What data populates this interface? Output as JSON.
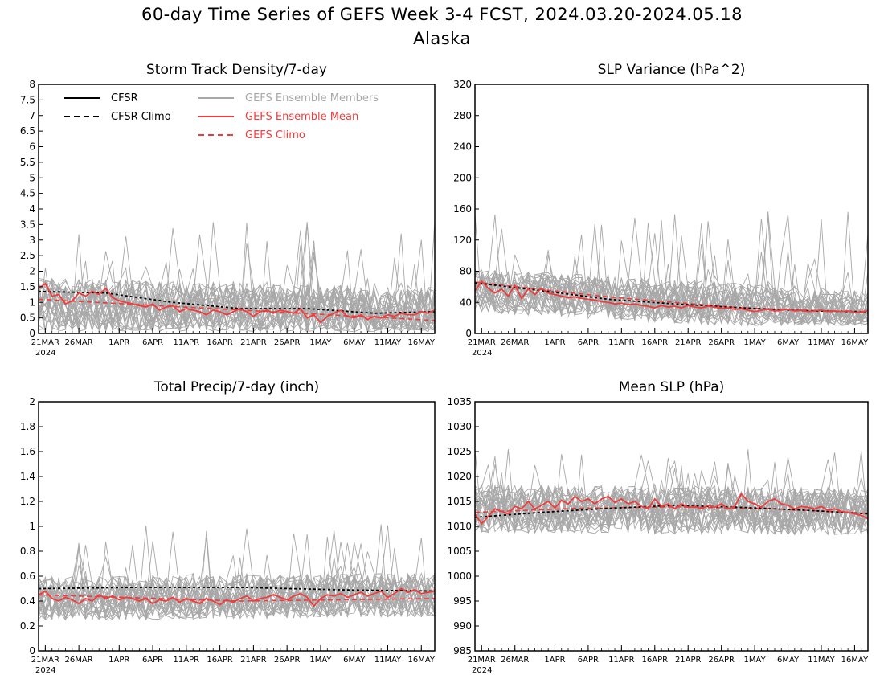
{
  "figure": {
    "title": "60-day Time Series of GEFS Week 3-4 FCST, 2024.03.20-2024.05.18",
    "subtitle": "Alaska"
  },
  "colors": {
    "cfsr": "#000000",
    "ensemble_members": "#a8a8a8",
    "ensemble_mean": "#f03c3c",
    "gefs_climo": "#f03c3c"
  },
  "x_axis": {
    "tick_labels": [
      "21MAR",
      "26MAR",
      "1APR",
      "6APR",
      "11APR",
      "16APR",
      "21APR",
      "26APR",
      "1MAY",
      "6MAY",
      "11MAY",
      "16MAY"
    ],
    "tick_days": [
      1,
      6,
      12,
      17,
      22,
      27,
      32,
      37,
      42,
      47,
      52,
      57
    ],
    "year_label": "2024",
    "range_days": [
      0,
      59
    ]
  },
  "legend": {
    "cfsr": "CFSR",
    "cfsr_climo": "CFSR Climo",
    "members": "GEFS Ensemble Members",
    "mean": "GEFS Ensemble Mean",
    "gefs_climo": "GEFS Climo"
  },
  "chart_data": [
    {
      "type": "line",
      "id": "storm",
      "title": "Storm Track Density/7-day",
      "ylim": [
        0,
        8
      ],
      "yticks": [
        "0",
        "0.5",
        "1",
        "1.5",
        "2",
        "2.5",
        "3",
        "3.5",
        "4",
        "4.5",
        "5",
        "5.5",
        "6",
        "6.5",
        "7",
        "7.5",
        "8"
      ],
      "ytick_values": [
        0,
        0.5,
        1,
        1.5,
        2,
        2.5,
        3,
        3.5,
        4,
        4.5,
        5,
        5.5,
        6,
        6.5,
        7,
        7.5,
        8
      ],
      "cfsr_climo": [
        [
          0,
          1.35
        ],
        [
          10,
          1.3
        ],
        [
          20,
          1.0
        ],
        [
          30,
          0.8
        ],
        [
          40,
          0.8
        ],
        [
          50,
          0.65
        ],
        [
          59,
          0.7
        ]
      ],
      "gefs_climo": [
        [
          0,
          1.1
        ],
        [
          59,
          0.42
        ]
      ],
      "ensemble_mean": [
        [
          0,
          1.45
        ],
        [
          1,
          1.6
        ],
        [
          2,
          1.2
        ],
        [
          3,
          1.25
        ],
        [
          4,
          0.95
        ],
        [
          5,
          1.05
        ],
        [
          6,
          1.3
        ],
        [
          7,
          1.2
        ],
        [
          8,
          1.35
        ],
        [
          9,
          1.25
        ],
        [
          10,
          1.45
        ],
        [
          11,
          1.15
        ],
        [
          12,
          1.05
        ],
        [
          13,
          1.0
        ],
        [
          14,
          0.95
        ],
        [
          15,
          0.9
        ],
        [
          16,
          0.85
        ],
        [
          17,
          0.95
        ],
        [
          18,
          0.75
        ],
        [
          19,
          0.85
        ],
        [
          20,
          0.9
        ],
        [
          21,
          0.7
        ],
        [
          22,
          0.8
        ],
        [
          23,
          0.75
        ],
        [
          24,
          0.7
        ],
        [
          25,
          0.6
        ],
        [
          26,
          0.75
        ],
        [
          27,
          0.7
        ],
        [
          28,
          0.6
        ],
        [
          29,
          0.7
        ],
        [
          30,
          0.8
        ],
        [
          31,
          0.7
        ],
        [
          32,
          0.55
        ],
        [
          33,
          0.7
        ],
        [
          34,
          0.75
        ],
        [
          35,
          0.65
        ],
        [
          36,
          0.75
        ],
        [
          37,
          0.7
        ],
        [
          38,
          0.65
        ],
        [
          39,
          0.8
        ],
        [
          40,
          0.5
        ],
        [
          41,
          0.6
        ],
        [
          42,
          0.35
        ],
        [
          43,
          0.55
        ],
        [
          44,
          0.65
        ],
        [
          45,
          0.75
        ],
        [
          46,
          0.55
        ],
        [
          47,
          0.5
        ],
        [
          48,
          0.6
        ],
        [
          49,
          0.45
        ],
        [
          50,
          0.55
        ],
        [
          51,
          0.5
        ],
        [
          52,
          0.6
        ],
        [
          53,
          0.55
        ],
        [
          54,
          0.65
        ],
        [
          55,
          0.6
        ],
        [
          56,
          0.6
        ],
        [
          57,
          0.7
        ],
        [
          58,
          0.65
        ],
        [
          59,
          0.75
        ]
      ],
      "members": {
        "center": 0.9,
        "center_end": 0.6,
        "spread": 1.1,
        "max": 3.7,
        "min": 0.05,
        "count": 30
      }
    },
    {
      "type": "line",
      "id": "slpvar",
      "title": "SLP Variance (hPa^2)",
      "ylim": [
        0,
        320
      ],
      "yticks": [
        "0",
        "40",
        "80",
        "120",
        "160",
        "200",
        "240",
        "280",
        "320"
      ],
      "ytick_values": [
        0,
        40,
        80,
        120,
        160,
        200,
        240,
        280,
        320
      ],
      "cfsr_climo": [
        [
          0,
          65
        ],
        [
          10,
          55
        ],
        [
          20,
          44
        ],
        [
          30,
          38
        ],
        [
          40,
          33
        ],
        [
          50,
          29
        ],
        [
          59,
          28
        ]
      ],
      "gefs_climo": [
        [
          0,
          66
        ],
        [
          20,
          47
        ],
        [
          40,
          33
        ],
        [
          59,
          27
        ]
      ],
      "ensemble_mean": [
        [
          0,
          55
        ],
        [
          1,
          67
        ],
        [
          2,
          58
        ],
        [
          3,
          52
        ],
        [
          4,
          57
        ],
        [
          5,
          48
        ],
        [
          6,
          62
        ],
        [
          7,
          45
        ],
        [
          8,
          57
        ],
        [
          9,
          50
        ],
        [
          10,
          58
        ],
        [
          11,
          52
        ],
        [
          12,
          50
        ],
        [
          13,
          48
        ],
        [
          14,
          46
        ],
        [
          15,
          47
        ],
        [
          16,
          45
        ],
        [
          17,
          44
        ],
        [
          18,
          43
        ],
        [
          19,
          41
        ],
        [
          20,
          40
        ],
        [
          21,
          38
        ],
        [
          22,
          39
        ],
        [
          23,
          37
        ],
        [
          24,
          38
        ],
        [
          25,
          36
        ],
        [
          26,
          35
        ],
        [
          27,
          33
        ],
        [
          28,
          36
        ],
        [
          29,
          34
        ],
        [
          30,
          35
        ],
        [
          31,
          33
        ],
        [
          32,
          36
        ],
        [
          33,
          34
        ],
        [
          34,
          33
        ],
        [
          35,
          35
        ],
        [
          36,
          34
        ],
        [
          37,
          32
        ],
        [
          38,
          33
        ],
        [
          39,
          31
        ],
        [
          40,
          32
        ],
        [
          41,
          30
        ],
        [
          42,
          28
        ],
        [
          43,
          30
        ],
        [
          44,
          31
        ],
        [
          45,
          29
        ],
        [
          46,
          30
        ],
        [
          47,
          31
        ],
        [
          48,
          29
        ],
        [
          49,
          30
        ],
        [
          50,
          28
        ],
        [
          51,
          29
        ],
        [
          52,
          30
        ],
        [
          53,
          28
        ],
        [
          54,
          29
        ],
        [
          55,
          28
        ],
        [
          56,
          29
        ],
        [
          57,
          27
        ],
        [
          58,
          28
        ],
        [
          59,
          29
        ]
      ],
      "members": {
        "center": 55,
        "center_end": 28,
        "spread": 35,
        "max": 160,
        "min": 10,
        "count": 30
      }
    },
    {
      "type": "line",
      "id": "precip",
      "title": "Total Precip/7-day (inch)",
      "ylim": [
        0,
        2
      ],
      "yticks": [
        "0",
        "0.2",
        "0.4",
        "0.6",
        "0.8",
        "1",
        "1.2",
        "1.4",
        "1.6",
        "1.8",
        "2"
      ],
      "ytick_values": [
        0,
        0.2,
        0.4,
        0.6,
        0.8,
        1,
        1.2,
        1.4,
        1.6,
        1.8,
        2
      ],
      "cfsr_climo": [
        [
          0,
          0.5
        ],
        [
          15,
          0.51
        ],
        [
          30,
          0.51
        ],
        [
          45,
          0.49
        ],
        [
          59,
          0.48
        ]
      ],
      "gefs_climo": [
        [
          0,
          0.45
        ],
        [
          30,
          0.4
        ],
        [
          59,
          0.42
        ]
      ],
      "ensemble_mean": [
        [
          0,
          0.45
        ],
        [
          1,
          0.48
        ],
        [
          2,
          0.42
        ],
        [
          3,
          0.4
        ],
        [
          4,
          0.43
        ],
        [
          5,
          0.41
        ],
        [
          6,
          0.38
        ],
        [
          7,
          0.42
        ],
        [
          8,
          0.4
        ],
        [
          9,
          0.45
        ],
        [
          10,
          0.42
        ],
        [
          11,
          0.44
        ],
        [
          12,
          0.41
        ],
        [
          13,
          0.43
        ],
        [
          14,
          0.42
        ],
        [
          15,
          0.4
        ],
        [
          16,
          0.42
        ],
        [
          17,
          0.38
        ],
        [
          18,
          0.41
        ],
        [
          19,
          0.4
        ],
        [
          20,
          0.43
        ],
        [
          21,
          0.39
        ],
        [
          22,
          0.42
        ],
        [
          23,
          0.4
        ],
        [
          24,
          0.38
        ],
        [
          25,
          0.42
        ],
        [
          26,
          0.4
        ],
        [
          27,
          0.37
        ],
        [
          28,
          0.41
        ],
        [
          29,
          0.39
        ],
        [
          30,
          0.42
        ],
        [
          31,
          0.44
        ],
        [
          32,
          0.4
        ],
        [
          33,
          0.42
        ],
        [
          34,
          0.43
        ],
        [
          35,
          0.45
        ],
        [
          36,
          0.43
        ],
        [
          37,
          0.41
        ],
        [
          38,
          0.44
        ],
        [
          39,
          0.46
        ],
        [
          40,
          0.43
        ],
        [
          41,
          0.36
        ],
        [
          42,
          0.42
        ],
        [
          43,
          0.45
        ],
        [
          44,
          0.44
        ],
        [
          45,
          0.46
        ],
        [
          46,
          0.43
        ],
        [
          47,
          0.45
        ],
        [
          48,
          0.47
        ],
        [
          49,
          0.44
        ],
        [
          50,
          0.46
        ],
        [
          51,
          0.48
        ],
        [
          52,
          0.43
        ],
        [
          53,
          0.46
        ],
        [
          54,
          0.5
        ],
        [
          55,
          0.47
        ],
        [
          56,
          0.49
        ],
        [
          57,
          0.46
        ],
        [
          58,
          0.47
        ],
        [
          59,
          0.48
        ]
      ],
      "members": {
        "center": 0.42,
        "center_end": 0.45,
        "spread": 0.22,
        "max": 1.02,
        "min": 0.08,
        "count": 30
      }
    },
    {
      "type": "line",
      "id": "mslp",
      "title": "Mean SLP (hPa)",
      "ylim": [
        985,
        1035
      ],
      "yticks": [
        "985",
        "990",
        "995",
        "1000",
        "1005",
        "1010",
        "1015",
        "1020",
        "1025",
        "1030",
        "1035"
      ],
      "ytick_values": [
        985,
        990,
        995,
        1000,
        1005,
        1010,
        1015,
        1020,
        1025,
        1030,
        1035
      ],
      "cfsr_climo": [
        [
          0,
          1011.8
        ],
        [
          10,
          1012.8
        ],
        [
          20,
          1013.6
        ],
        [
          30,
          1014.2
        ],
        [
          40,
          1013.8
        ],
        [
          50,
          1013.2
        ],
        [
          59,
          1012.5
        ]
      ],
      "gefs_climo": [
        [
          0,
          1012.8
        ],
        [
          15,
          1013.6
        ],
        [
          30,
          1013.9
        ],
        [
          45,
          1013.5
        ],
        [
          59,
          1012.6
        ]
      ],
      "ensemble_mean": [
        [
          0,
          1012.5
        ],
        [
          1,
          1010.5
        ],
        [
          2,
          1012
        ],
        [
          3,
          1013.5
        ],
        [
          4,
          1013
        ],
        [
          5,
          1012.5
        ],
        [
          6,
          1014
        ],
        [
          7,
          1013.5
        ],
        [
          8,
          1015
        ],
        [
          9,
          1013.5
        ],
        [
          10,
          1014.2
        ],
        [
          11,
          1015
        ],
        [
          12,
          1013.7
        ],
        [
          13,
          1015.2
        ],
        [
          14,
          1014.5
        ],
        [
          15,
          1016
        ],
        [
          16,
          1015
        ],
        [
          17,
          1015.5
        ],
        [
          18,
          1014.5
        ],
        [
          19,
          1015.5
        ],
        [
          20,
          1016
        ],
        [
          21,
          1014.8
        ],
        [
          22,
          1015.5
        ],
        [
          23,
          1014.5
        ],
        [
          24,
          1015
        ],
        [
          25,
          1014
        ],
        [
          26,
          1013.5
        ],
        [
          27,
          1015.5
        ],
        [
          28,
          1014
        ],
        [
          29,
          1014.5
        ],
        [
          30,
          1013.5
        ],
        [
          31,
          1014.5
        ],
        [
          32,
          1013.8
        ],
        [
          33,
          1014
        ],
        [
          34,
          1013.5
        ],
        [
          35,
          1014.2
        ],
        [
          36,
          1013.8
        ],
        [
          37,
          1014.5
        ],
        [
          38,
          1013.5
        ],
        [
          39,
          1014
        ],
        [
          40,
          1016.5
        ],
        [
          41,
          1015
        ],
        [
          42,
          1014.5
        ],
        [
          43,
          1013.8
        ],
        [
          44,
          1015
        ],
        [
          45,
          1015.5
        ],
        [
          46,
          1014.5
        ],
        [
          47,
          1014.2
        ],
        [
          48,
          1013.5
        ],
        [
          49,
          1014
        ],
        [
          50,
          1013.8
        ],
        [
          51,
          1013.5
        ],
        [
          52,
          1014
        ],
        [
          53,
          1013.2
        ],
        [
          54,
          1013.5
        ],
        [
          55,
          1013
        ],
        [
          56,
          1012.8
        ],
        [
          57,
          1012.5
        ],
        [
          58,
          1012.2
        ],
        [
          59,
          1011.5
        ]
      ],
      "members": {
        "center": 1013.5,
        "center_end": 1013,
        "spread": 6,
        "max": 1025.5,
        "min": 1001.5,
        "count": 30
      }
    }
  ]
}
